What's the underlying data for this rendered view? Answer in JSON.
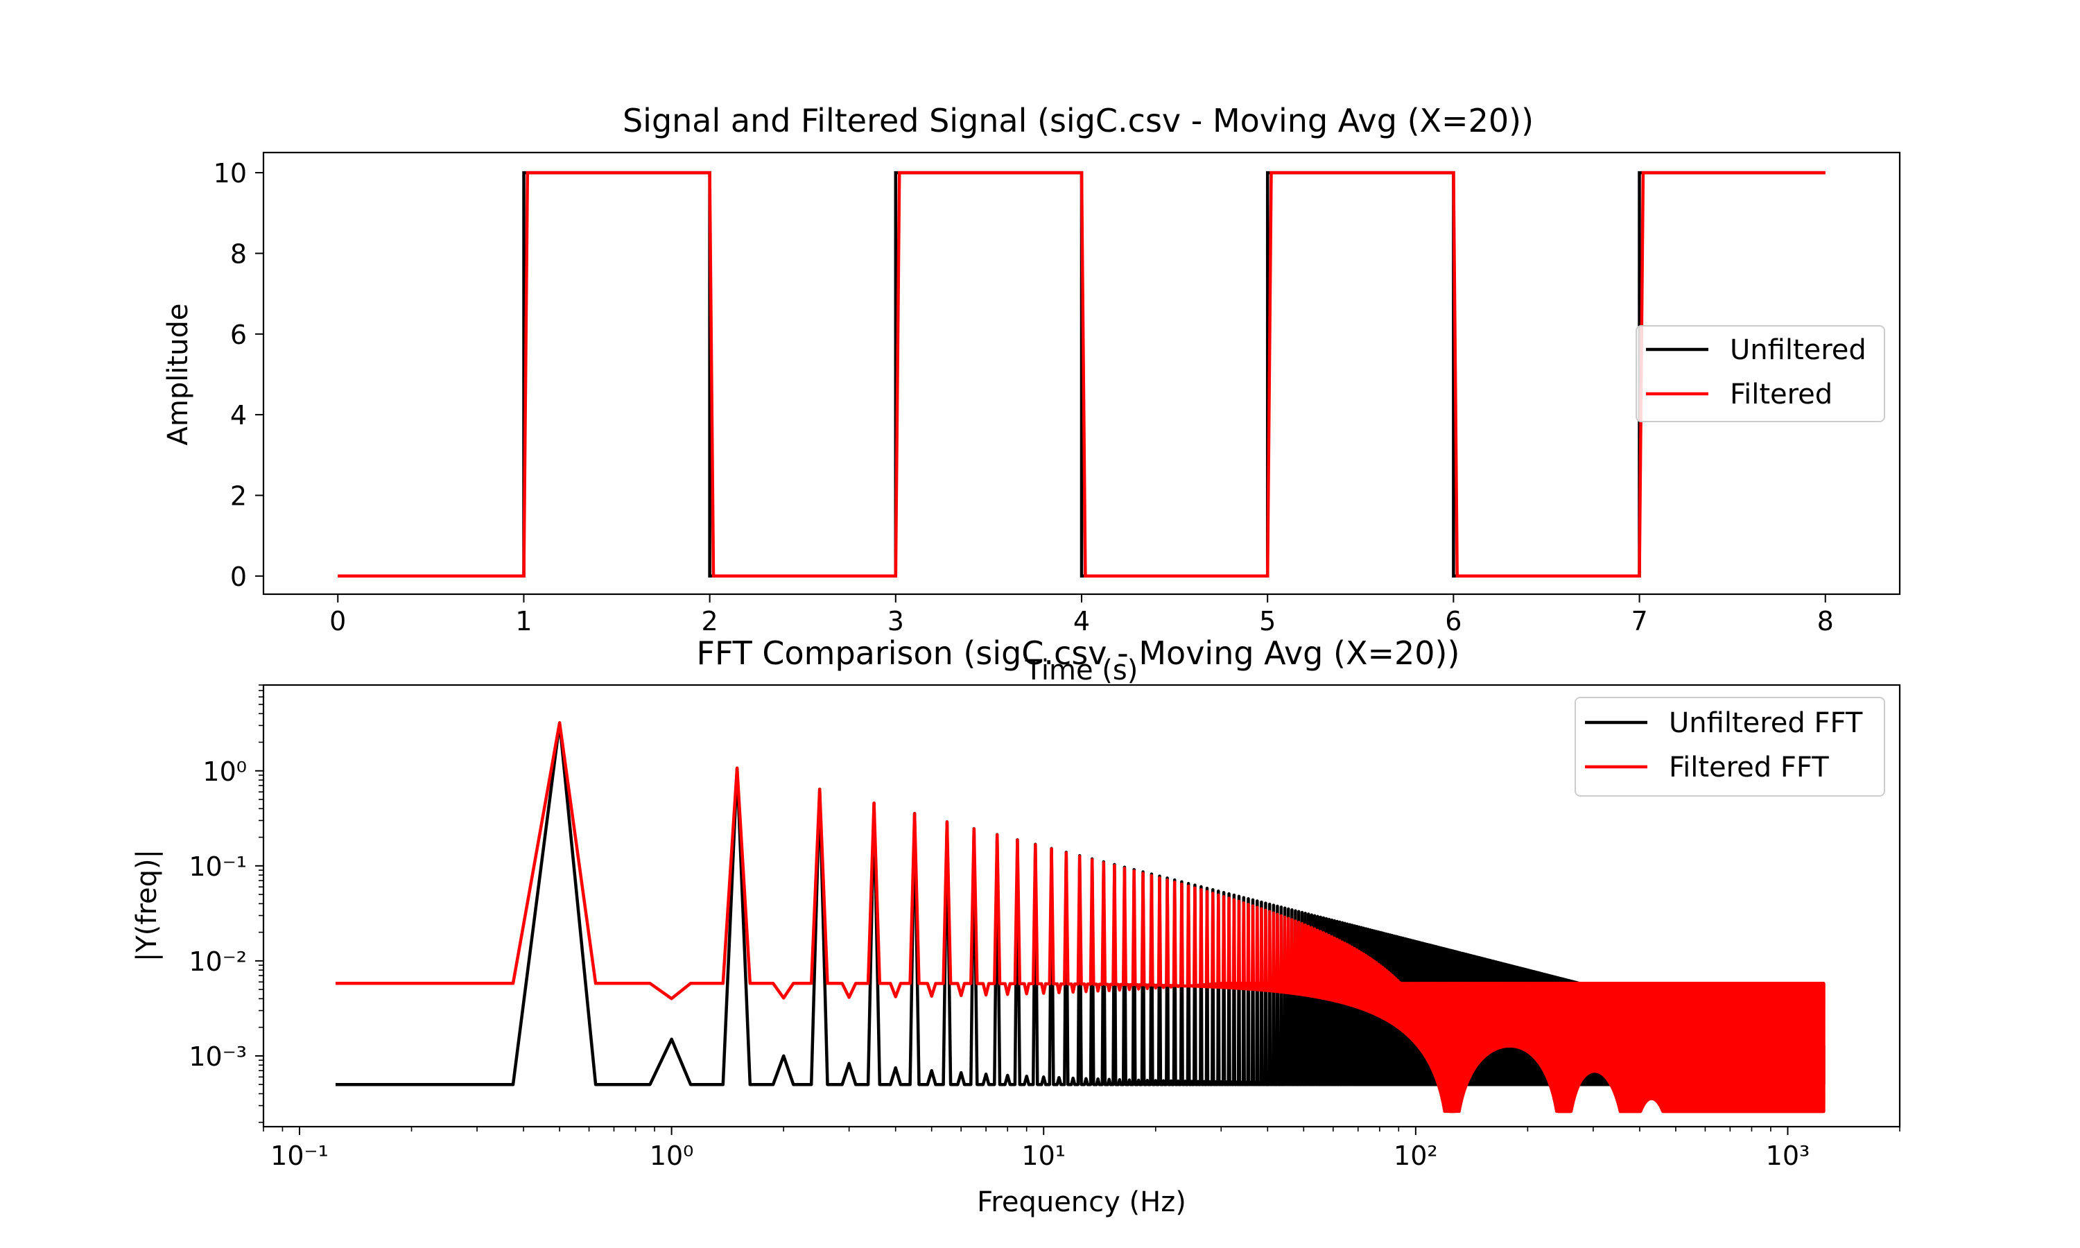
{
  "chart_data": [
    {
      "type": "line",
      "title": "Signal and Filtered Signal (sigC.csv - Moving Avg (X=20))",
      "xlabel": "Time (s)",
      "ylabel": "Amplitude",
      "xlim": [
        -0.4,
        8.4
      ],
      "ylim": [
        -0.45,
        10.5
      ],
      "xticks": [
        0,
        1,
        2,
        3,
        4,
        5,
        6,
        7,
        8
      ],
      "xtick_labels": [
        "0",
        "1",
        "2",
        "3",
        "4",
        "5",
        "6",
        "7",
        "8"
      ],
      "yticks": [
        0,
        2,
        4,
        6,
        8,
        10
      ],
      "ytick_labels": [
        "0",
        "2",
        "4",
        "6",
        "8",
        "10"
      ],
      "grid": false,
      "legend": "center-right",
      "series": [
        {
          "name": "Unfiltered",
          "color": "#000000",
          "x": [
            0,
            1,
            1,
            2,
            2,
            3,
            3,
            4,
            4,
            5,
            5,
            6,
            6,
            7,
            7,
            8
          ],
          "y": [
            0,
            0,
            10,
            10,
            0,
            0,
            10,
            10,
            0,
            0,
            10,
            10,
            0,
            0,
            10,
            10
          ]
        },
        {
          "name": "Filtered",
          "color": "#ff0000",
          "x": [
            0,
            1,
            1.02,
            2,
            2.02,
            3,
            3.02,
            4,
            4.02,
            5,
            5.02,
            6,
            6.02,
            7,
            7.02,
            8
          ],
          "y": [
            0,
            0,
            10,
            10,
            0,
            0,
            10,
            10,
            0,
            0,
            10,
            10,
            0,
            0,
            10,
            10
          ]
        }
      ]
    },
    {
      "type": "line",
      "title": "FFT Comparison (sigC.csv - Moving Avg (X=20))",
      "xlabel": "Frequency (Hz)",
      "ylabel": "|Y(freq)|",
      "xscale": "log",
      "yscale": "log",
      "xlim": [
        0.08,
        2000
      ],
      "ylim": [
        0.00018,
        8
      ],
      "xticks": [
        0.1,
        1,
        10,
        100,
        1000
      ],
      "xtick_labels": [
        "10⁻¹",
        "10⁰",
        "10¹",
        "10²",
        "10³"
      ],
      "yticks": [
        0.001,
        0.01,
        0.1,
        1
      ],
      "ytick_labels": [
        "10⁻³",
        "10⁻²",
        "10⁻¹",
        "10⁰"
      ],
      "grid": false,
      "legend": "top-right",
      "signal": {
        "period_s": 2,
        "amplitude": 10,
        "duration_s": 8,
        "max_frequency_hz": 1250,
        "moving_avg_window": 20
      },
      "series": [
        {
          "name": "Unfiltered FFT",
          "color": "#000000",
          "floor": 0.0005,
          "band_top": 0.0015,
          "peak_at_0_5hz": 3.2
        },
        {
          "name": "Filtered FFT",
          "color": "#ff0000",
          "floor": 0.0058,
          "peak_at_0_5hz": 3.2
        }
      ]
    }
  ]
}
